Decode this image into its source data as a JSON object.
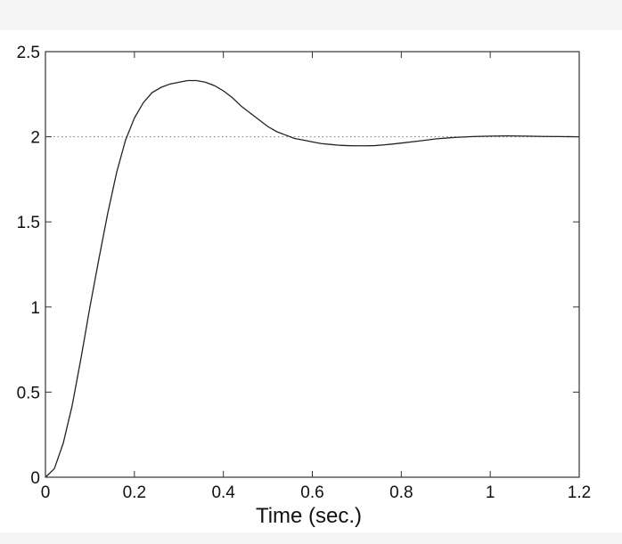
{
  "chart_data": {
    "type": "line",
    "title": "",
    "xlabel": "Time (sec.)",
    "ylabel": "",
    "xlim": [
      0,
      1.2
    ],
    "ylim": [
      0,
      2.5
    ],
    "xticks": [
      0,
      0.2,
      0.4,
      0.6,
      0.8,
      1,
      1.2
    ],
    "xtick_labels": [
      "0",
      "0.2",
      "0.4",
      "0.6",
      "0.8",
      "1",
      "1.2"
    ],
    "yticks": [
      0,
      0.5,
      1,
      1.5,
      2,
      2.5
    ],
    "ytick_labels": [
      "0",
      "0.5",
      "1",
      "1.5",
      "2",
      "2.5"
    ],
    "grid": false,
    "legend": "none",
    "series": [
      {
        "style": "solid",
        "color": "#222222",
        "x": [
          0,
          0.02,
          0.04,
          0.06,
          0.08,
          0.1,
          0.12,
          0.14,
          0.16,
          0.18,
          0.2,
          0.22,
          0.24,
          0.26,
          0.28,
          0.3,
          0.32,
          0.34,
          0.36,
          0.38,
          0.4,
          0.42,
          0.44,
          0.46,
          0.48,
          0.5,
          0.52,
          0.54,
          0.56,
          0.58,
          0.6,
          0.62,
          0.64,
          0.66,
          0.68,
          0.7,
          0.72,
          0.74,
          0.76,
          0.78,
          0.8,
          0.84,
          0.88,
          0.92,
          0.96,
          1.0,
          1.04,
          1.08,
          1.12,
          1.16,
          1.2
        ],
        "y": [
          0,
          0.05,
          0.2,
          0.42,
          0.7,
          1.0,
          1.28,
          1.55,
          1.79,
          1.98,
          2.11,
          2.2,
          2.26,
          2.29,
          2.31,
          2.32,
          2.33,
          2.33,
          2.32,
          2.3,
          2.27,
          2.23,
          2.18,
          2.14,
          2.1,
          2.06,
          2.03,
          2.01,
          1.99,
          1.98,
          1.97,
          1.96,
          1.955,
          1.95,
          1.948,
          1.947,
          1.947,
          1.948,
          1.952,
          1.957,
          1.963,
          1.975,
          1.988,
          1.996,
          2.001,
          2.004,
          2.005,
          2.004,
          2.002,
          2.001,
          2.0
        ]
      },
      {
        "style": "dotted",
        "color": "#777777",
        "x": [
          0,
          1.2
        ],
        "y": [
          2,
          2
        ]
      }
    ]
  }
}
